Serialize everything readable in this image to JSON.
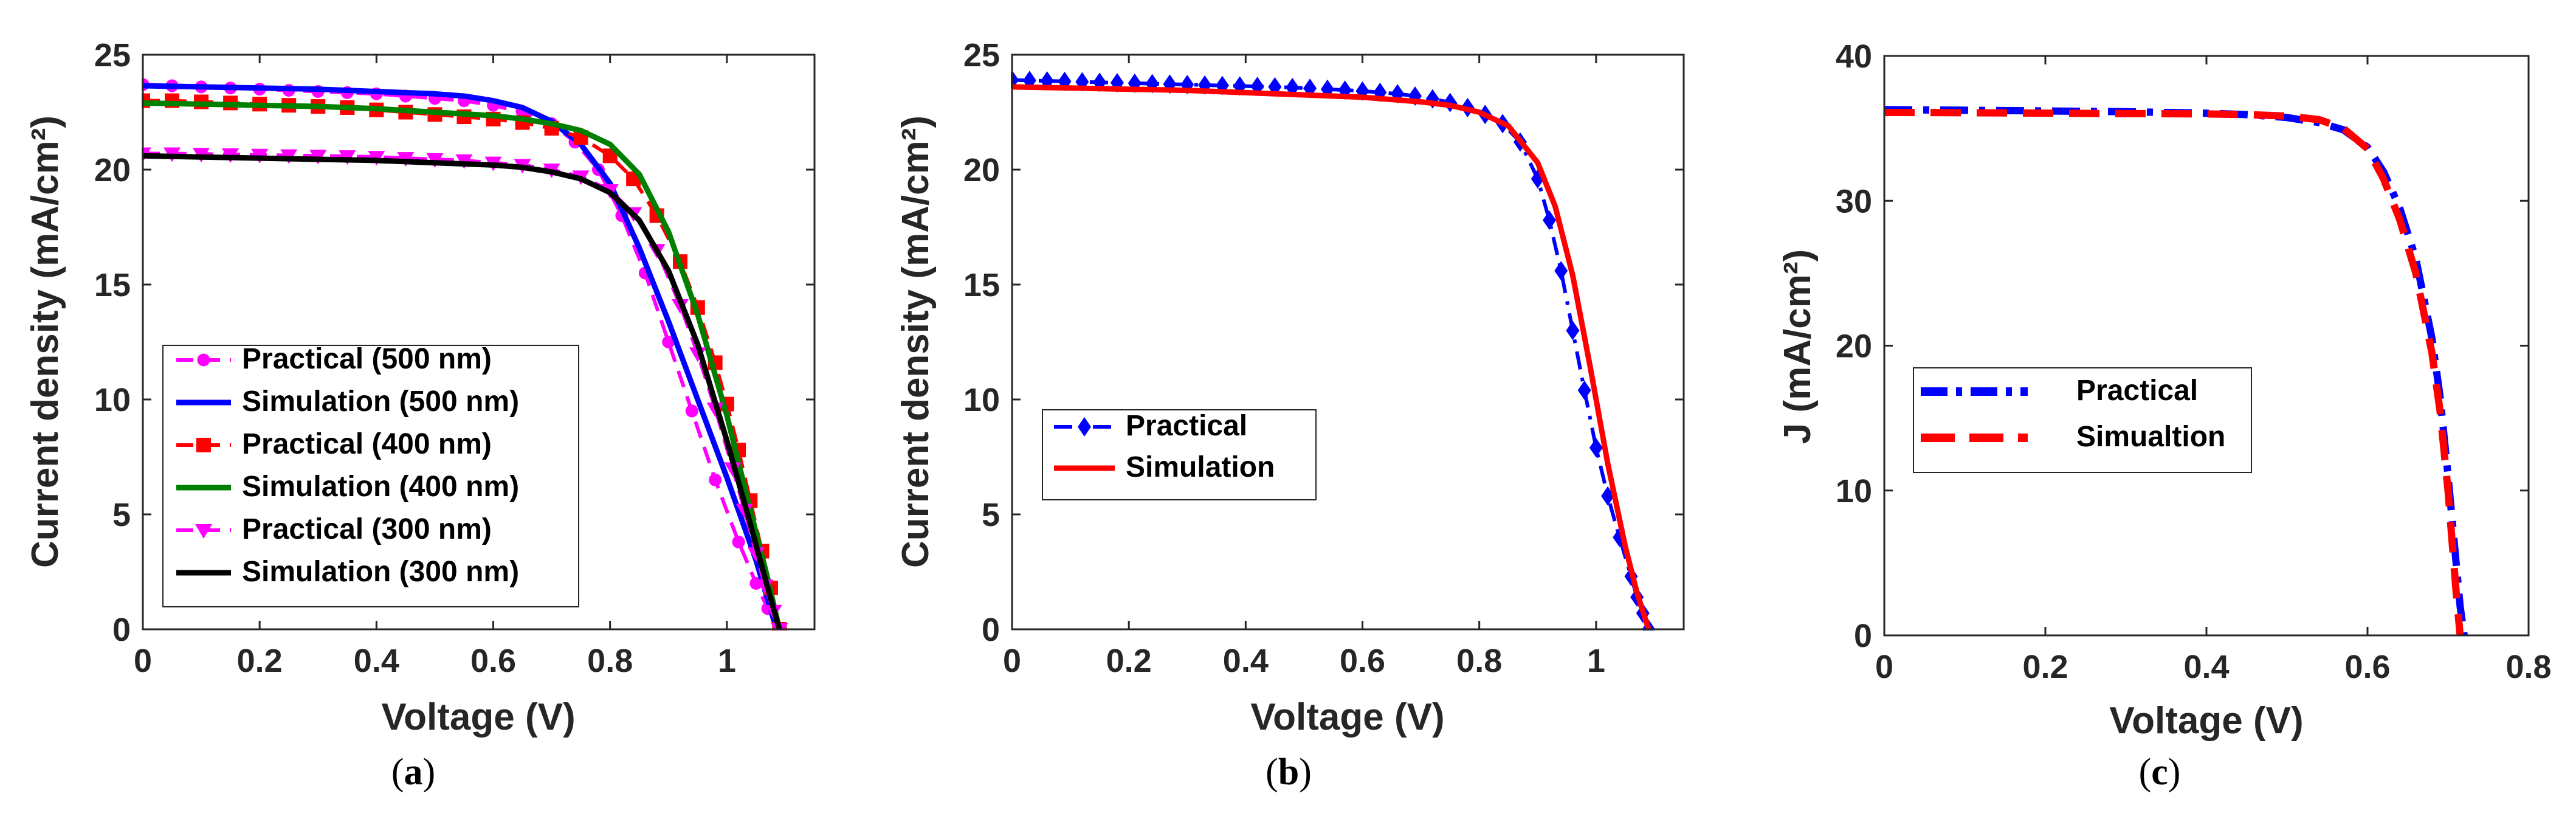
{
  "chart_data": [
    {
      "type": "line",
      "panel": "a",
      "caption": "(a)",
      "caption_label": "a",
      "xlabel": "Voltage (V)",
      "ylabel": "Current density (mA/cm²)",
      "xlim": [
        0,
        1.15
      ],
      "ylim": [
        0,
        25
      ],
      "xticks": [
        0,
        0.2,
        0.4,
        0.6,
        0.8,
        1
      ],
      "xtick_labels": [
        "0",
        "0.2",
        "0.4",
        "0.6",
        "0.8",
        "1"
      ],
      "yticks": [
        0,
        5,
        10,
        15,
        20,
        25
      ],
      "ytick_labels": [
        "0",
        "5",
        "10",
        "15",
        "20",
        "25"
      ],
      "legend": "lower-left",
      "series": [
        {
          "name": "Practical (500 nm)",
          "color": "#ff00ff",
          "dash": "dashed",
          "marker": "circle",
          "x": [
            0,
            0.05,
            0.1,
            0.15,
            0.2,
            0.25,
            0.3,
            0.35,
            0.4,
            0.45,
            0.5,
            0.55,
            0.6,
            0.65,
            0.7,
            0.74,
            0.78,
            0.82,
            0.86,
            0.9,
            0.94,
            0.98,
            1.02,
            1.05,
            1.07,
            1.09
          ],
          "y": [
            23.7,
            23.65,
            23.6,
            23.55,
            23.5,
            23.45,
            23.4,
            23.35,
            23.3,
            23.2,
            23.1,
            23.0,
            22.8,
            22.5,
            22.0,
            21.2,
            20.0,
            18.0,
            15.5,
            12.5,
            9.5,
            6.5,
            3.8,
            2.0,
            0.9,
            0
          ]
        },
        {
          "name": "Simulation (500 nm)",
          "color": "#0000ff",
          "dash": "solid",
          "marker": "none",
          "x": [
            0,
            0.1,
            0.2,
            0.3,
            0.4,
            0.5,
            0.55,
            0.6,
            0.65,
            0.7,
            0.75,
            0.8,
            0.85,
            0.9,
            0.95,
            1.0,
            1.05,
            1.085
          ],
          "y": [
            23.65,
            23.6,
            23.55,
            23.5,
            23.4,
            23.3,
            23.2,
            23.0,
            22.7,
            22.1,
            21.1,
            19.4,
            16.6,
            13.4,
            10.0,
            6.6,
            3.0,
            0
          ]
        },
        {
          "name": "Practical (400 nm)",
          "color": "#ff0000",
          "dash": "dashed",
          "marker": "square",
          "x": [
            0,
            0.05,
            0.1,
            0.15,
            0.2,
            0.25,
            0.3,
            0.35,
            0.4,
            0.45,
            0.5,
            0.55,
            0.6,
            0.65,
            0.7,
            0.75,
            0.8,
            0.84,
            0.88,
            0.92,
            0.95,
            0.98,
            1.0,
            1.02,
            1.04,
            1.06,
            1.075,
            1.09
          ],
          "y": [
            23.0,
            23.0,
            22.95,
            22.9,
            22.85,
            22.8,
            22.75,
            22.7,
            22.6,
            22.5,
            22.4,
            22.3,
            22.2,
            22.05,
            21.8,
            21.4,
            20.6,
            19.6,
            18.0,
            16.0,
            14.0,
            11.6,
            9.8,
            7.8,
            5.6,
            3.4,
            1.8,
            0
          ]
        },
        {
          "name": "Simulation (400 nm)",
          "color": "#008000",
          "dash": "solid",
          "marker": "none",
          "x": [
            0,
            0.1,
            0.2,
            0.3,
            0.4,
            0.5,
            0.6,
            0.65,
            0.7,
            0.75,
            0.8,
            0.85,
            0.9,
            0.95,
            1.0,
            1.04,
            1.07,
            1.09
          ],
          "y": [
            22.9,
            22.85,
            22.8,
            22.75,
            22.65,
            22.5,
            22.35,
            22.2,
            22.0,
            21.7,
            21.1,
            19.8,
            17.3,
            13.7,
            9.3,
            5.2,
            2.2,
            0
          ]
        },
        {
          "name": "Practical (300 nm)",
          "color": "#ff00ff",
          "dash": "dashed",
          "marker": "triangle-down",
          "x": [
            0,
            0.05,
            0.1,
            0.15,
            0.2,
            0.25,
            0.3,
            0.35,
            0.4,
            0.45,
            0.5,
            0.55,
            0.6,
            0.65,
            0.7,
            0.75,
            0.8,
            0.84,
            0.88,
            0.92,
            0.95,
            0.98,
            1.01,
            1.03,
            1.05,
            1.065,
            1.08,
            1.09
          ],
          "y": [
            20.7,
            20.7,
            20.68,
            20.66,
            20.64,
            20.62,
            20.6,
            20.58,
            20.55,
            20.5,
            20.45,
            20.4,
            20.3,
            20.2,
            20.0,
            19.7,
            19.1,
            18.1,
            16.5,
            14.1,
            12.0,
            9.6,
            7.0,
            5.2,
            3.3,
            1.9,
            0.8,
            0
          ]
        },
        {
          "name": "Simulation (300 nm)",
          "color": "#000000",
          "dash": "solid",
          "marker": "none",
          "x": [
            0,
            0.1,
            0.2,
            0.3,
            0.4,
            0.5,
            0.6,
            0.65,
            0.7,
            0.75,
            0.8,
            0.85,
            0.9,
            0.95,
            1.0,
            1.04,
            1.07,
            1.09
          ],
          "y": [
            20.6,
            20.55,
            20.5,
            20.45,
            20.4,
            20.3,
            20.2,
            20.1,
            19.9,
            19.6,
            19.0,
            17.8,
            15.6,
            12.4,
            8.2,
            4.6,
            1.8,
            0
          ]
        }
      ]
    },
    {
      "type": "line",
      "panel": "b",
      "caption": "(b)",
      "caption_label": "b",
      "xlabel": "Voltage (V)",
      "ylabel": "Current density (mA/cm²)",
      "xlim": [
        0,
        1.15
      ],
      "ylim": [
        0,
        25
      ],
      "xticks": [
        0,
        0.2,
        0.4,
        0.6,
        0.8,
        1
      ],
      "xtick_labels": [
        "0",
        "0.2",
        "0.4",
        "0.6",
        "0.8",
        "1"
      ],
      "yticks": [
        0,
        5,
        10,
        15,
        20,
        25
      ],
      "ytick_labels": [
        "0",
        "5",
        "10",
        "15",
        "20",
        "25"
      ],
      "legend": "left",
      "series": [
        {
          "name": "Practical",
          "color": "#0000ff",
          "dash": "dashdot",
          "marker": "diamond",
          "x": [
            0,
            0.03,
            0.06,
            0.09,
            0.12,
            0.15,
            0.18,
            0.21,
            0.24,
            0.27,
            0.3,
            0.33,
            0.36,
            0.39,
            0.42,
            0.45,
            0.48,
            0.51,
            0.54,
            0.57,
            0.6,
            0.63,
            0.66,
            0.69,
            0.72,
            0.75,
            0.78,
            0.81,
            0.84,
            0.87,
            0.9,
            0.92,
            0.94,
            0.96,
            0.98,
            1.0,
            1.02,
            1.04,
            1.06,
            1.07,
            1.08,
            1.09
          ],
          "y": [
            23.9,
            23.88,
            23.86,
            23.84,
            23.82,
            23.8,
            23.78,
            23.76,
            23.74,
            23.72,
            23.7,
            23.68,
            23.66,
            23.64,
            23.62,
            23.6,
            23.57,
            23.54,
            23.5,
            23.46,
            23.42,
            23.36,
            23.3,
            23.2,
            23.08,
            22.92,
            22.7,
            22.4,
            22.0,
            21.2,
            19.6,
            17.8,
            15.6,
            13.0,
            10.4,
            7.9,
            5.8,
            4.0,
            2.3,
            1.4,
            0.7,
            0
          ]
        },
        {
          "name": "Simulation",
          "color": "#ff0000",
          "dash": "solid",
          "marker": "none",
          "x": [
            0,
            0.1,
            0.2,
            0.3,
            0.4,
            0.5,
            0.6,
            0.7,
            0.75,
            0.8,
            0.85,
            0.9,
            0.93,
            0.96,
            0.99,
            1.02,
            1.05,
            1.07,
            1.09
          ],
          "y": [
            23.6,
            23.55,
            23.5,
            23.45,
            23.35,
            23.25,
            23.15,
            22.95,
            22.8,
            22.5,
            21.9,
            20.3,
            18.4,
            15.4,
            11.4,
            7.2,
            3.6,
            1.6,
            0
          ]
        }
      ]
    },
    {
      "type": "line",
      "panel": "c",
      "caption": "(c)",
      "caption_label": "c",
      "xlabel": "Voltage (V)",
      "ylabel": "J (mA/cm²)",
      "xlim": [
        0,
        0.8
      ],
      "ylim": [
        0,
        40
      ],
      "xticks": [
        0,
        0.2,
        0.4,
        0.6,
        0.8
      ],
      "xtick_labels": [
        "0",
        "0.2",
        "0.4",
        "0.6",
        "0.8"
      ],
      "yticks": [
        0,
        10,
        20,
        30,
        40
      ],
      "ytick_labels": [
        "0",
        "10",
        "20",
        "30",
        "40"
      ],
      "legend": "left",
      "series": [
        {
          "name": "Practical",
          "color": "#0000ff",
          "dash": "dashdot",
          "marker": "none",
          "x": [
            0,
            0.1,
            0.2,
            0.3,
            0.4,
            0.45,
            0.5,
            0.54,
            0.57,
            0.6,
            0.62,
            0.64,
            0.66,
            0.68,
            0.69,
            0.7,
            0.71,
            0.715,
            0.72
          ],
          "y": [
            36.3,
            36.25,
            36.2,
            36.15,
            36.05,
            35.95,
            35.75,
            35.4,
            34.9,
            33.7,
            32.0,
            29.5,
            26.0,
            20.5,
            16.5,
            11.0,
            5.0,
            2.0,
            0
          ]
        },
        {
          "name": "Simualtion",
          "color": "#ff0000",
          "dash": "dashed",
          "marker": "none",
          "x": [
            0,
            0.1,
            0.2,
            0.3,
            0.4,
            0.45,
            0.5,
            0.54,
            0.57,
            0.6,
            0.62,
            0.64,
            0.66,
            0.68,
            0.69,
            0.7,
            0.705,
            0.71,
            0.715
          ],
          "y": [
            36.1,
            36.08,
            36.05,
            36.02,
            36.0,
            35.95,
            35.85,
            35.6,
            35.0,
            33.6,
            31.5,
            28.7,
            25.0,
            19.5,
            15.5,
            10.0,
            6.5,
            3.0,
            0
          ]
        }
      ]
    }
  ]
}
